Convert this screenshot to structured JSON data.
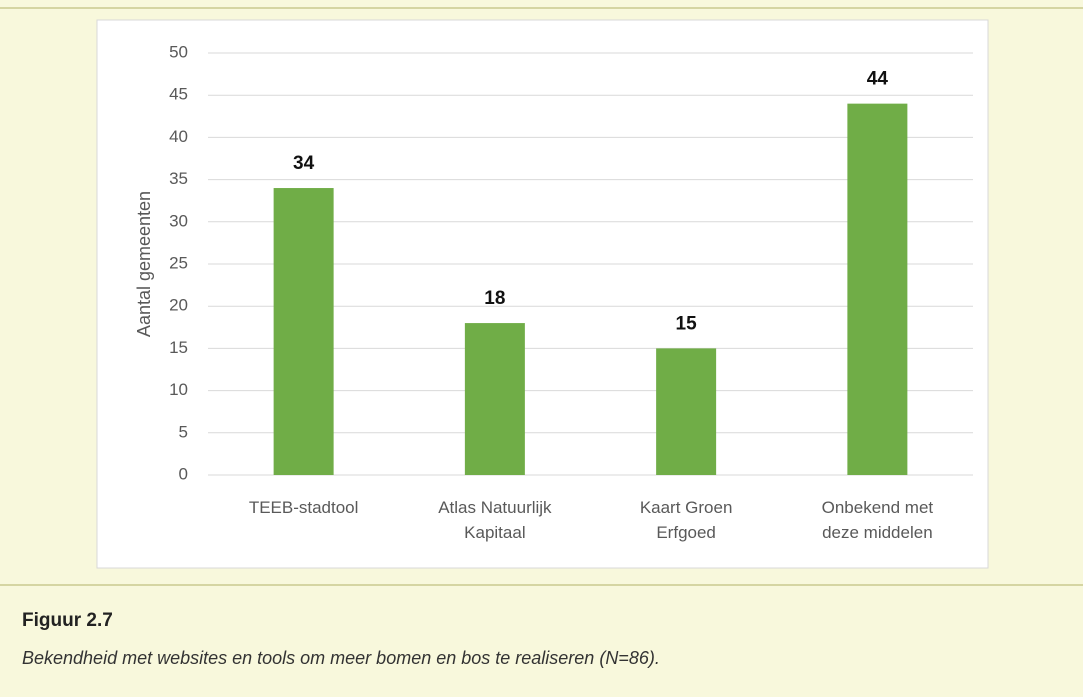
{
  "chart_data": {
    "type": "bar",
    "y_label": "Aantal gemeenten",
    "categories": [
      "TEEB-stadtool",
      "Atlas Natuurlijk Kapitaal",
      "Kaart Groen Erfgoed",
      "Onbekend met deze middelen"
    ],
    "values": [
      34,
      18,
      15,
      44
    ],
    "color": "#70ad47",
    "ylim": [
      0,
      50
    ],
    "yticks": [
      0,
      5,
      10,
      15,
      20,
      25,
      30,
      35,
      40,
      45,
      50
    ],
    "grid": true
  },
  "caption": {
    "label": "Figuur 2.7",
    "text": "Bekendheid met websites en tools om meer bomen en bos te realiseren (N=86)."
  }
}
